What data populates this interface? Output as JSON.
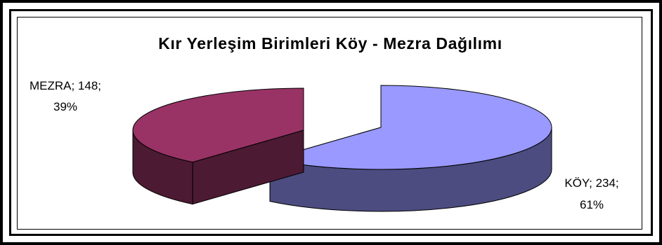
{
  "chart_data": {
    "type": "pie",
    "title": "Kır Yerleşim Birimleri Köy - Mezra Dağılımı",
    "categories": [
      "KÖY",
      "MEZRA"
    ],
    "values": [
      234,
      148
    ],
    "percentages": [
      "61%",
      "39%"
    ],
    "data_labels": [
      {
        "line1": "KÖY; 234;",
        "line2": "61%"
      },
      {
        "line1": "MEZRA; 148;",
        "line2": "39%"
      }
    ],
    "style": "3d-exploded",
    "legend": "none",
    "colors": {
      "KÖY": {
        "top": "#9999FF",
        "side": "#4C4C80"
      },
      "MEZRA": {
        "top": "#993366",
        "side": "#4C1A33"
      }
    }
  }
}
